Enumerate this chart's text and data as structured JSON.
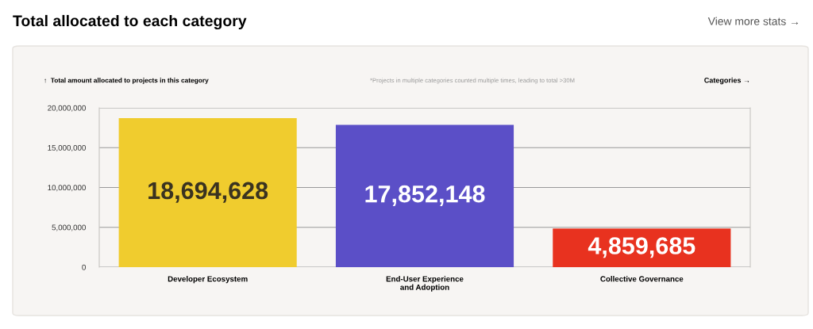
{
  "chart_data": {
    "type": "bar",
    "title": "Total allocated to each category",
    "ylabel": "↑  Total amount allocated to projects in this category",
    "xlabel": "Categories →",
    "annotations": [
      "*Projects in multiple categories counted multiple times, leading to total >30M",
      "View more stats →"
    ],
    "categories": [
      "Developer Ecosystem",
      "End-User Experience\nand Adoption",
      "Collective Governance"
    ],
    "values": [
      18694628,
      17852148,
      4859685
    ],
    "colors": [
      "#f0cc2e",
      "#5b4fc7",
      "#e8321f"
    ],
    "value_labels": [
      "18,694,628",
      "17,852,148",
      "4,859,685"
    ],
    "ylim": [
      0,
      20000000
    ],
    "yticks": [
      {
        "value": 0,
        "label": "0"
      },
      {
        "value": 5000000,
        "label": "5,000,000"
      },
      {
        "value": 10000000,
        "label": "10,000,000"
      },
      {
        "value": 15000000,
        "label": "15,000,000"
      },
      {
        "value": 20000000,
        "label": "20,000,000"
      }
    ],
    "grid": "y",
    "legend": false
  }
}
